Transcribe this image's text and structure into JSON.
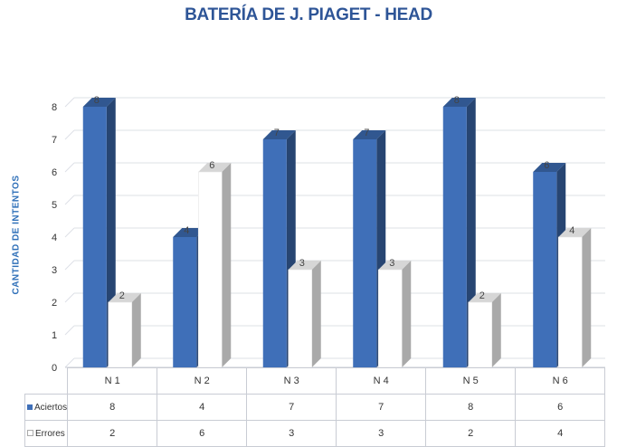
{
  "chart_data": {
    "type": "bar",
    "title": "BATERÍA DE J. PIAGET - HEAD",
    "ylabel": "CANTIDAD DE INTENTOS",
    "xlabel": "",
    "categories": [
      "N 1",
      "N 2",
      "N 3",
      "N 4",
      "N 5",
      "N 6"
    ],
    "series": [
      {
        "name": "Aciertos",
        "values": [
          8,
          4,
          7,
          7,
          8,
          6
        ],
        "color": "#3F6FB8"
      },
      {
        "name": "Errores",
        "values": [
          2,
          6,
          3,
          3,
          2,
          4
        ],
        "color": "#FFFFFF"
      }
    ],
    "ylim": [
      0,
      8
    ],
    "yticks": [
      "0",
      "1",
      "2",
      "3",
      "4",
      "5",
      "6",
      "7",
      "8"
    ],
    "grid": true,
    "style": "3d-column",
    "legend": "data-table-below"
  }
}
